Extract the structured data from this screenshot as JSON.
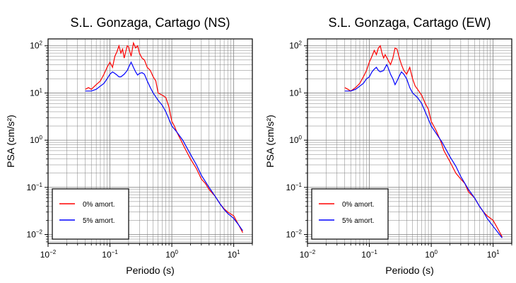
{
  "figure": {
    "colors": {
      "background": "#ffffff",
      "axes": "#000000",
      "grid": "#808080"
    }
  },
  "chart_data": [
    {
      "type": "line",
      "title": "S.L. Gonzaga, Cartago (NS)",
      "xlabel": "Periodo (s)",
      "ylabel": "PSA (cm/s²)",
      "xscale": "log",
      "yscale": "log",
      "xlim": [
        0.01,
        20
      ],
      "ylim": [
        0.0065,
        140
      ],
      "xticks": [
        {
          "base": "10",
          "exp": "−2"
        },
        {
          "base": "10",
          "exp": "−1"
        },
        {
          "base": "10",
          "exp": "0"
        },
        {
          "base": "10",
          "exp": "1"
        }
      ],
      "yticks": [
        {
          "base": "10",
          "exp": "−2"
        },
        {
          "base": "10",
          "exp": "−1"
        },
        {
          "base": "10",
          "exp": "0"
        },
        {
          "base": "10",
          "exp": "1"
        },
        {
          "base": "10",
          "exp": "2"
        }
      ],
      "grid": true,
      "legend": "bottom-left",
      "series": [
        {
          "name": "0% amort.",
          "color": "#ff0000",
          "x": [
            0.04,
            0.045,
            0.05,
            0.06,
            0.07,
            0.08,
            0.09,
            0.1,
            0.11,
            0.12,
            0.13,
            0.14,
            0.15,
            0.16,
            0.17,
            0.18,
            0.19,
            0.2,
            0.22,
            0.24,
            0.26,
            0.28,
            0.3,
            0.33,
            0.36,
            0.4,
            0.45,
            0.5,
            0.55,
            0.6,
            0.7,
            0.8,
            0.9,
            1.0,
            1.1,
            1.2,
            1.4,
            1.6,
            2.0,
            2.5,
            3.0,
            3.5,
            4.0,
            5.0,
            6.0,
            7.0,
            8.0,
            10.0,
            12.0,
            14.0
          ],
          "y": [
            12,
            13,
            12,
            15,
            18,
            25,
            35,
            45,
            35,
            60,
            75,
            100,
            70,
            85,
            55,
            75,
            100,
            95,
            60,
            115,
            90,
            100,
            70,
            55,
            50,
            35,
            30,
            22,
            18,
            10,
            9,
            8,
            5,
            2.5,
            2,
            1.5,
            1.0,
            0.7,
            0.4,
            0.25,
            0.15,
            0.12,
            0.09,
            0.065,
            0.045,
            0.035,
            0.03,
            0.025,
            0.016,
            0.011
          ]
        },
        {
          "name": "5% amort.",
          "color": "#0000ff",
          "x": [
            0.04,
            0.05,
            0.06,
            0.07,
            0.08,
            0.09,
            0.1,
            0.11,
            0.12,
            0.13,
            0.14,
            0.15,
            0.17,
            0.19,
            0.2,
            0.22,
            0.24,
            0.26,
            0.28,
            0.3,
            0.33,
            0.36,
            0.4,
            0.45,
            0.5,
            0.6,
            0.7,
            0.8,
            1.0,
            1.2,
            1.5,
            2.0,
            2.5,
            3.0,
            4.0,
            5.0,
            6.0,
            7.0,
            8.0,
            10.0,
            12.0,
            14.0
          ],
          "y": [
            11,
            11,
            12,
            14,
            16,
            20,
            25,
            28,
            26,
            24,
            22,
            22,
            25,
            30,
            35,
            45,
            35,
            28,
            24,
            26,
            27,
            25,
            18,
            13,
            10,
            7,
            5.5,
            4,
            2,
            1.5,
            1.0,
            0.5,
            0.3,
            0.18,
            0.1,
            0.065,
            0.045,
            0.034,
            0.028,
            0.022,
            0.016,
            0.012
          ]
        }
      ]
    },
    {
      "type": "line",
      "title": "S.L. Gonzaga, Cartago (EW)",
      "xlabel": "Periodo (s)",
      "ylabel": "PSA (cm/s²)",
      "xscale": "log",
      "yscale": "log",
      "xlim": [
        0.01,
        20
      ],
      "ylim": [
        0.0065,
        140
      ],
      "xticks": [
        {
          "base": "10",
          "exp": "−2"
        },
        {
          "base": "10",
          "exp": "−1"
        },
        {
          "base": "10",
          "exp": "0"
        },
        {
          "base": "10",
          "exp": "1"
        }
      ],
      "yticks": [
        {
          "base": "10",
          "exp": "−2"
        },
        {
          "base": "10",
          "exp": "−1"
        },
        {
          "base": "10",
          "exp": "0"
        },
        {
          "base": "10",
          "exp": "1"
        },
        {
          "base": "10",
          "exp": "2"
        }
      ],
      "grid": true,
      "legend": "bottom-left",
      "series": [
        {
          "name": "0% amort.",
          "color": "#ff0000",
          "x": [
            0.04,
            0.045,
            0.05,
            0.06,
            0.07,
            0.08,
            0.09,
            0.1,
            0.11,
            0.12,
            0.13,
            0.14,
            0.15,
            0.16,
            0.17,
            0.18,
            0.2,
            0.22,
            0.24,
            0.26,
            0.28,
            0.3,
            0.33,
            0.36,
            0.4,
            0.45,
            0.5,
            0.55,
            0.6,
            0.7,
            0.8,
            0.9,
            1.0,
            1.2,
            1.4,
            1.6,
            2.0,
            2.5,
            3.0,
            3.5,
            4.0,
            5.0,
            6.0,
            7.0,
            8.0,
            10.0,
            12.0,
            14.0
          ],
          "y": [
            13,
            12,
            11,
            13,
            16,
            22,
            30,
            45,
            60,
            80,
            65,
            90,
            100,
            70,
            55,
            65,
            50,
            40,
            55,
            90,
            85,
            60,
            40,
            30,
            25,
            35,
            20,
            14,
            12,
            9,
            6,
            4.5,
            2.5,
            1.6,
            1.0,
            0.6,
            0.35,
            0.2,
            0.15,
            0.12,
            0.08,
            0.06,
            0.04,
            0.03,
            0.025,
            0.02,
            0.013,
            0.009
          ]
        },
        {
          "name": "5% amort.",
          "color": "#0000ff",
          "x": [
            0.04,
            0.05,
            0.06,
            0.07,
            0.08,
            0.09,
            0.1,
            0.11,
            0.12,
            0.13,
            0.14,
            0.15,
            0.17,
            0.19,
            0.2,
            0.22,
            0.24,
            0.26,
            0.28,
            0.3,
            0.33,
            0.36,
            0.4,
            0.45,
            0.5,
            0.6,
            0.7,
            0.8,
            1.0,
            1.2,
            1.5,
            2.0,
            2.5,
            3.0,
            4.0,
            5.0,
            6.0,
            7.0,
            8.0,
            10.0,
            12.0,
            14.0
          ],
          "y": [
            11,
            11,
            12,
            14,
            16,
            20,
            22,
            28,
            32,
            35,
            30,
            28,
            30,
            40,
            35,
            25,
            20,
            15,
            18,
            22,
            28,
            25,
            20,
            13,
            10,
            8,
            6,
            4,
            2,
            1.4,
            0.9,
            0.45,
            0.28,
            0.17,
            0.09,
            0.06,
            0.04,
            0.03,
            0.022,
            0.015,
            0.011,
            0.0085
          ]
        }
      ]
    }
  ]
}
